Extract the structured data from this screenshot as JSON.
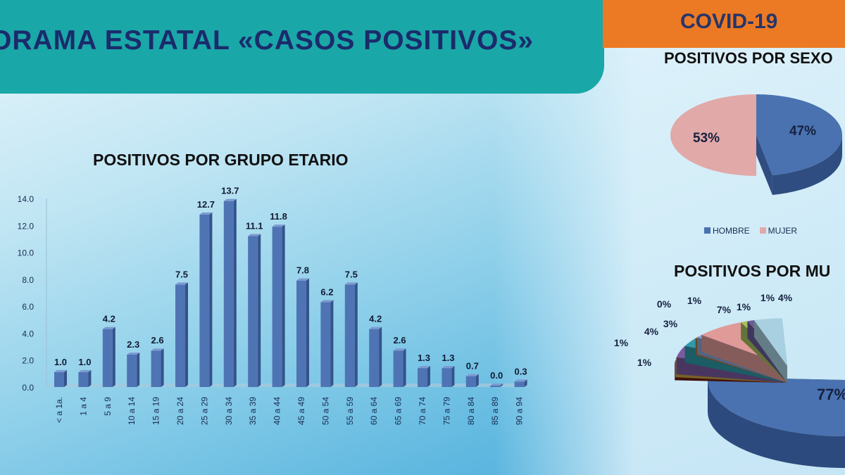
{
  "header": {
    "title": "ORAMA ESTATAL «CASOS POSITIVOS»",
    "badge": "COVID-19"
  },
  "colors": {
    "bar": "#4f74b4",
    "hombre": "#4a72b0",
    "mujer": "#e2a9a9",
    "header": "#1aa7a8",
    "badge": "#ec7a24"
  },
  "chart_data": [
    {
      "type": "bar",
      "title": "POSITIVOS POR GRUPO ETARIO",
      "xlabel": "",
      "ylabel": "",
      "ylim": [
        0,
        14
      ],
      "yticks": [
        "0.0",
        "2.0",
        "4.0",
        "6.0",
        "8.0",
        "10.0",
        "12.0",
        "14.0"
      ],
      "categories": [
        "< a 1a.",
        "1 a 4",
        "5 a 9",
        "10 a 14",
        "15 a 19",
        "20 a 24",
        "25 a 29",
        "30 a 34",
        "35 a 39",
        "40 a 44",
        "45 a 49",
        "50 a 54",
        "55 a 59",
        "60 a 64",
        "65 a 69",
        "70 a 74",
        "75 a 79",
        "80 a 84",
        "85 a 89",
        "90 a 94"
      ],
      "values": [
        1.0,
        1.0,
        4.2,
        2.3,
        2.6,
        7.5,
        12.7,
        13.7,
        11.1,
        11.8,
        7.8,
        6.2,
        7.5,
        4.2,
        2.6,
        1.3,
        1.3,
        0.7,
        0.0,
        0.3
      ],
      "labels": [
        "1.0",
        "1.0",
        "4.2",
        "2.3",
        "2.6",
        "7.5",
        "12.7",
        "13.7",
        "11.1",
        "11.8",
        "7.8",
        "6.2",
        "7.5",
        "4.2",
        "2.6",
        "1.3",
        "1.3",
        "0.7",
        "0.0",
        "0.3"
      ]
    },
    {
      "type": "pie",
      "title": "POSITIVOS POR SEXO",
      "legend": "bottom",
      "series": [
        {
          "name": "HOMBRE",
          "value": 47,
          "label": "47%"
        },
        {
          "name": "MUJER",
          "value": 53,
          "label": "53%"
        }
      ]
    },
    {
      "type": "pie",
      "title": "POSITIVOS POR MU",
      "slices": [
        {
          "value": 77,
          "label": "77%",
          "color": "#4a72b0"
        },
        {
          "value": 1,
          "label": "1%",
          "color": "#6b1c16"
        },
        {
          "value": 1,
          "label": "1%",
          "color": "#c8a040"
        },
        {
          "value": 4,
          "label": "4%",
          "color": "#7b5aa0"
        },
        {
          "value": 3,
          "label": "3%",
          "color": "#2f9aa8"
        },
        {
          "value": 0,
          "label": "0%",
          "color": "#b87038"
        },
        {
          "value": 1,
          "label": "1%",
          "color": "#8aa8d8"
        },
        {
          "value": 7,
          "label": "7%",
          "color": "#e09a98"
        },
        {
          "value": 1,
          "label": "1%",
          "color": "#a8c060"
        },
        {
          "value": 1,
          "label": "1%",
          "color": "#6a5a98"
        },
        {
          "value": 4,
          "label": "4%",
          "color": "#a8d0e0"
        }
      ]
    }
  ]
}
